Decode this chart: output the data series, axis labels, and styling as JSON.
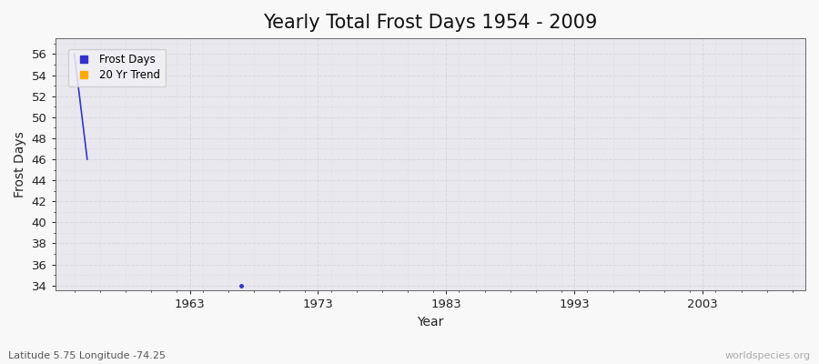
{
  "title": "Yearly Total Frost Days 1954 - 2009",
  "xlabel": "Year",
  "ylabel": "Frost Days",
  "subtitle": "Latitude 5.75 Longitude -74.25",
  "watermark": "worldspecies.org",
  "frost_years": [
    1954,
    1955,
    1967
  ],
  "frost_values": [
    56,
    46,
    34
  ],
  "frost_color": "#3333cc",
  "trend_color": "#ffaa00",
  "ylim": [
    33.5,
    57.5
  ],
  "xlim": [
    1952.5,
    2011
  ],
  "yticks": [
    34,
    36,
    38,
    40,
    42,
    44,
    46,
    48,
    50,
    52,
    54,
    56
  ],
  "xticks": [
    1963,
    1973,
    1983,
    1993,
    2003
  ],
  "fig_bg_color": "#f8f8f8",
  "plot_bg_color": "#e8e8ee",
  "grid_color": "#d8d8e0",
  "legend_frost": "Frost Days",
  "legend_trend": "20 Yr Trend",
  "title_fontsize": 15,
  "label_fontsize": 10,
  "tick_fontsize": 9.5
}
